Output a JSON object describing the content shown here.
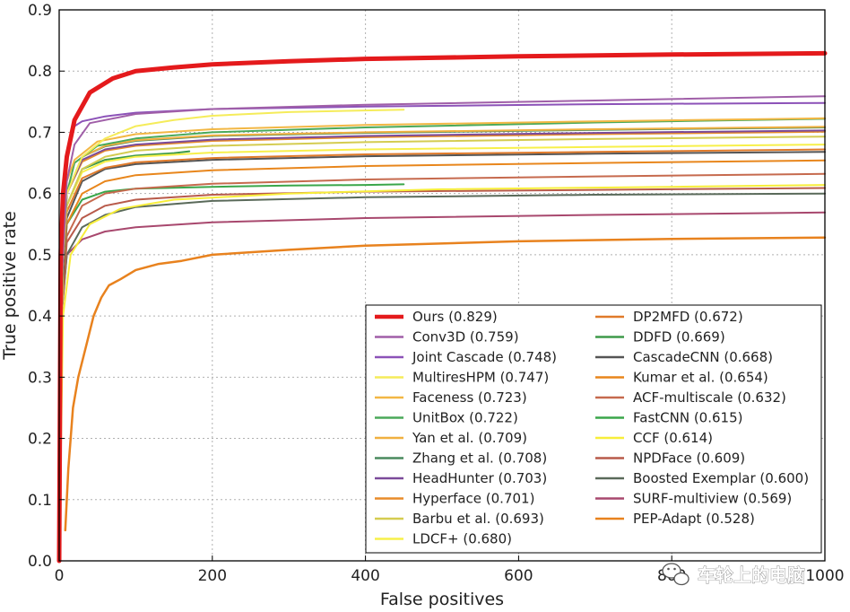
{
  "chart_data": {
    "type": "line",
    "title": "",
    "xlabel": "False positives",
    "ylabel": "True positive rate",
    "xlim": [
      0,
      1000
    ],
    "ylim": [
      0,
      0.9
    ],
    "xticks": [
      "0",
      "200",
      "400",
      "600",
      "800",
      "1000"
    ],
    "yticks": [
      "0.0",
      "0.1",
      "0.2",
      "0.3",
      "0.4",
      "0.5",
      "0.6",
      "0.7",
      "0.8",
      "0.9"
    ],
    "grid": true,
    "legend_position": "bottom-right",
    "series": [
      {
        "name": "Ours (0.829)",
        "color": "#e41a1c",
        "width": 5,
        "x": [
          0,
          2,
          5,
          10,
          20,
          40,
          70,
          100,
          150,
          200,
          300,
          400,
          600,
          800,
          1000
        ],
        "y": [
          0.0,
          0.5,
          0.6,
          0.66,
          0.72,
          0.765,
          0.788,
          0.8,
          0.806,
          0.811,
          0.816,
          0.82,
          0.824,
          0.827,
          0.829
        ]
      },
      {
        "name": "Conv3D (0.759)",
        "color": "#a05fa8",
        "width": 2,
        "x": [
          0,
          3,
          10,
          20,
          40,
          100,
          200,
          400,
          700,
          1000
        ],
        "y": [
          0.0,
          0.45,
          0.62,
          0.68,
          0.715,
          0.73,
          0.738,
          0.745,
          0.752,
          0.759
        ]
      },
      {
        "name": "Joint Cascade (0.748)",
        "color": "#8c52b8",
        "width": 2,
        "x": [
          0,
          3,
          10,
          20,
          30,
          60,
          100,
          200,
          400,
          700,
          1000
        ],
        "y": [
          0.0,
          0.5,
          0.66,
          0.71,
          0.718,
          0.726,
          0.732,
          0.738,
          0.742,
          0.746,
          0.748
        ]
      },
      {
        "name": "MultiresHPM (0.747)",
        "color": "#f5ec5a",
        "width": 2,
        "x": [
          0,
          5,
          10,
          30,
          60,
          100,
          150,
          200,
          300,
          450
        ],
        "y": [
          0.0,
          0.55,
          0.6,
          0.66,
          0.69,
          0.71,
          0.72,
          0.727,
          0.733,
          0.737
        ]
      },
      {
        "name": "Faceness (0.723)",
        "color": "#f2b744",
        "width": 2,
        "x": [
          0,
          3,
          10,
          20,
          50,
          100,
          200,
          400,
          700,
          1000
        ],
        "y": [
          0.0,
          0.5,
          0.62,
          0.655,
          0.685,
          0.697,
          0.705,
          0.712,
          0.718,
          0.723
        ]
      },
      {
        "name": "UnitBox (0.722)",
        "color": "#4aa95a",
        "width": 2,
        "x": [
          0,
          3,
          10,
          20,
          50,
          100,
          200,
          400,
          700,
          1000
        ],
        "y": [
          0.0,
          0.5,
          0.6,
          0.65,
          0.678,
          0.69,
          0.7,
          0.708,
          0.716,
          0.722
        ]
      },
      {
        "name": "Yan et al. (0.709)",
        "color": "#f0b040",
        "width": 2,
        "x": [
          0,
          3,
          10,
          30,
          60,
          100,
          200,
          400,
          700,
          1000
        ],
        "y": [
          0.0,
          0.45,
          0.6,
          0.66,
          0.678,
          0.687,
          0.695,
          0.7,
          0.705,
          0.709
        ]
      },
      {
        "name": "Zhang et al. (0.708)",
        "color": "#4a8a5e",
        "width": 2,
        "x": [
          0,
          3,
          10,
          30,
          60,
          100,
          200,
          400,
          700,
          1000
        ],
        "y": [
          0.0,
          0.45,
          0.6,
          0.66,
          0.677,
          0.686,
          0.694,
          0.699,
          0.704,
          0.708
        ]
      },
      {
        "name": "HeadHunter (0.703)",
        "color": "#7b4a9a",
        "width": 2,
        "x": [
          0,
          3,
          10,
          30,
          60,
          100,
          200,
          400,
          700,
          1000
        ],
        "y": [
          0.0,
          0.45,
          0.6,
          0.655,
          0.672,
          0.68,
          0.688,
          0.694,
          0.699,
          0.703
        ]
      },
      {
        "name": "Hyperface (0.701)",
        "color": "#e88c2a",
        "width": 2,
        "x": [
          0,
          3,
          10,
          30,
          60,
          100,
          200,
          400,
          700,
          1000
        ],
        "y": [
          0.0,
          0.45,
          0.6,
          0.652,
          0.67,
          0.678,
          0.686,
          0.692,
          0.697,
          0.701
        ]
      },
      {
        "name": "Barbu et al. (0.693)",
        "color": "#d4cc50",
        "width": 2,
        "x": [
          0,
          3,
          10,
          30,
          60,
          100,
          200,
          400,
          700,
          1000
        ],
        "y": [
          0.0,
          0.45,
          0.58,
          0.64,
          0.66,
          0.67,
          0.678,
          0.684,
          0.689,
          0.693
        ]
      },
      {
        "name": "LDCF+ (0.680)",
        "color": "#f7f04a",
        "width": 2,
        "x": [
          0,
          3,
          10,
          30,
          60,
          100,
          200,
          400,
          700,
          1000
        ],
        "y": [
          0.0,
          0.45,
          0.58,
          0.635,
          0.652,
          0.66,
          0.667,
          0.672,
          0.676,
          0.68
        ]
      },
      {
        "name": "DP2MFD (0.672)",
        "color": "#e07a2a",
        "width": 2,
        "x": [
          0,
          3,
          10,
          30,
          60,
          100,
          200,
          400,
          700,
          1000
        ],
        "y": [
          0.0,
          0.45,
          0.57,
          0.625,
          0.642,
          0.651,
          0.658,
          0.664,
          0.668,
          0.672
        ]
      },
      {
        "name": "DDFD (0.669)",
        "color": "#3e9a4a",
        "width": 2,
        "x": [
          0,
          3,
          10,
          30,
          60,
          100,
          150,
          170
        ],
        "y": [
          0.0,
          0.45,
          0.58,
          0.64,
          0.655,
          0.662,
          0.666,
          0.669
        ]
      },
      {
        "name": "CascadeCNN (0.668)",
        "color": "#555555",
        "width": 2,
        "x": [
          0,
          3,
          10,
          30,
          60,
          100,
          200,
          400,
          700,
          1000
        ],
        "y": [
          0.0,
          0.42,
          0.56,
          0.62,
          0.64,
          0.648,
          0.655,
          0.661,
          0.665,
          0.668
        ]
      },
      {
        "name": "Kumar et al. (0.654)",
        "color": "#e8861c",
        "width": 2,
        "x": [
          0,
          3,
          10,
          30,
          60,
          100,
          200,
          400,
          700,
          1000
        ],
        "y": [
          0.0,
          0.42,
          0.55,
          0.6,
          0.62,
          0.63,
          0.638,
          0.645,
          0.65,
          0.654
        ]
      },
      {
        "name": "ACF-multiscale (0.632)",
        "color": "#c66a4e",
        "width": 2,
        "x": [
          0,
          3,
          10,
          30,
          60,
          100,
          200,
          400,
          700,
          1000
        ],
        "y": [
          0.0,
          0.4,
          0.53,
          0.58,
          0.6,
          0.608,
          0.616,
          0.623,
          0.628,
          0.632
        ]
      },
      {
        "name": "FastCNN (0.615)",
        "color": "#3aa64a",
        "width": 2,
        "x": [
          0,
          3,
          10,
          30,
          60,
          100,
          200,
          300,
          400,
          450
        ],
        "y": [
          0.0,
          0.42,
          0.55,
          0.59,
          0.603,
          0.608,
          0.611,
          0.613,
          0.614,
          0.615
        ]
      },
      {
        "name": "CCF (0.614)",
        "color": "#f7ee3a",
        "width": 2,
        "x": [
          0,
          5,
          15,
          40,
          80,
          150,
          300,
          500,
          800,
          1000
        ],
        "y": [
          0.0,
          0.4,
          0.5,
          0.55,
          0.575,
          0.59,
          0.6,
          0.607,
          0.611,
          0.614
        ]
      },
      {
        "name": "NPDFace (0.609)",
        "color": "#b85a4a",
        "width": 2,
        "x": [
          0,
          3,
          10,
          30,
          60,
          100,
          200,
          400,
          700,
          1000
        ],
        "y": [
          0.0,
          0.4,
          0.52,
          0.56,
          0.58,
          0.59,
          0.598,
          0.603,
          0.606,
          0.609
        ]
      },
      {
        "name": "Boosted Exemplar (0.600)",
        "color": "#5a6a5a",
        "width": 2,
        "x": [
          0,
          3,
          10,
          30,
          60,
          100,
          200,
          400,
          700,
          1000
        ],
        "y": [
          0.0,
          0.4,
          0.5,
          0.545,
          0.565,
          0.578,
          0.588,
          0.594,
          0.598,
          0.6
        ]
      },
      {
        "name": "SURF-multiview (0.569)",
        "color": "#a8486e",
        "width": 2,
        "x": [
          0,
          3,
          10,
          30,
          60,
          100,
          200,
          400,
          700,
          1000
        ],
        "y": [
          0.0,
          0.4,
          0.5,
          0.525,
          0.538,
          0.545,
          0.553,
          0.56,
          0.565,
          0.569
        ]
      },
      {
        "name": "PEP-Adapt (0.528)",
        "color": "#e8821e",
        "width": 2.5,
        "x": [
          8,
          12,
          18,
          25,
          35,
          45,
          55,
          65,
          80,
          100,
          130,
          160,
          200,
          300,
          400,
          600,
          800,
          1000
        ],
        "y": [
          0.05,
          0.15,
          0.25,
          0.3,
          0.35,
          0.4,
          0.43,
          0.45,
          0.46,
          0.475,
          0.485,
          0.49,
          0.5,
          0.508,
          0.515,
          0.522,
          0.526,
          0.528
        ]
      }
    ]
  },
  "watermark": {
    "text": "车轮上的电脑",
    "icon": "wechat-icon"
  }
}
